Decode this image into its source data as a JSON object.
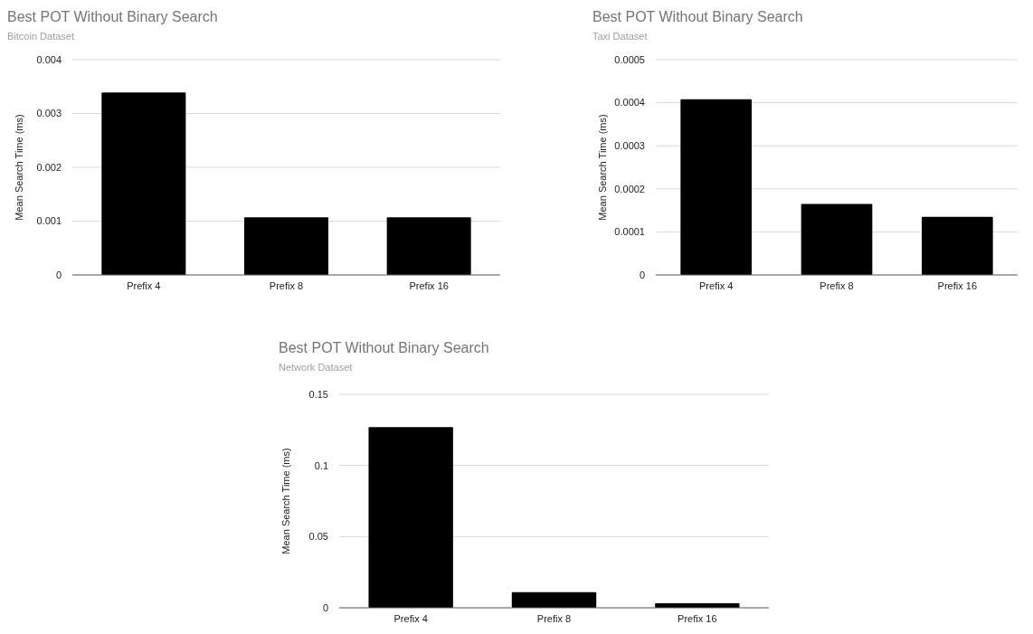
{
  "chart_data": [
    {
      "type": "bar",
      "title": "Best POT Without Binary Search",
      "subtitle": "Bitcoin Dataset",
      "ylabel": "Mean Search Time (ms)",
      "categories": [
        "Prefix 4",
        "Prefix 8",
        "Prefix 16"
      ],
      "values": [
        0.00339,
        0.00107,
        0.00107
      ],
      "color": "#000000",
      "ylim": [
        0,
        0.004
      ],
      "yticks": [
        0,
        0.001,
        0.002,
        0.003,
        0.004
      ],
      "grid": "y"
    },
    {
      "type": "bar",
      "title": "Best POT Without Binary Search",
      "subtitle": "Taxi Dataset",
      "ylabel": "Mean Search Time (ms)",
      "categories": [
        "Prefix 4",
        "Prefix 8",
        "Prefix 16"
      ],
      "values": [
        0.000408,
        0.000165,
        0.000135
      ],
      "color": "#000000",
      "ylim": [
        0,
        0.0005
      ],
      "yticks": [
        0,
        0.0001,
        0.0002,
        0.0003,
        0.0004,
        0.0005
      ],
      "grid": "y"
    },
    {
      "type": "bar",
      "title": "Best POT Without Binary Search",
      "subtitle": "Network Dataset",
      "ylabel": "Mean Search Time (ms)",
      "categories": [
        "Prefix 4",
        "Prefix 8",
        "Prefix 16"
      ],
      "values": [
        0.127,
        0.011,
        0.0032
      ],
      "color": "#000000",
      "ylim": [
        0,
        0.15
      ],
      "yticks": [
        0,
        0.05,
        0.1,
        0.15
      ],
      "grid": "y"
    }
  ]
}
